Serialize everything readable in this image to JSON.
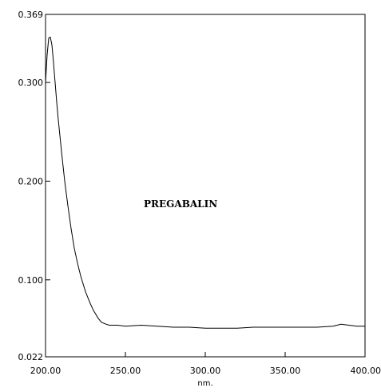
{
  "chart_data": {
    "type": "line",
    "title": "",
    "xlabel": "nm.",
    "ylabel": "",
    "xlim": [
      200.0,
      400.0
    ],
    "ylim": [
      0.022,
      0.369
    ],
    "x_ticks": [
      "200.00",
      "250.00",
      "300.00",
      "350.00",
      "400.00"
    ],
    "y_ticks": [
      "0.022",
      "0.100",
      "0.200",
      "0.300",
      "0.369"
    ],
    "grid": false,
    "annotation": "PREGABALIN",
    "series": [
      {
        "color": "#000000",
        "x": [
          200,
          201,
          202,
          203,
          204,
          205,
          206,
          207,
          208,
          210,
          212,
          214,
          216,
          218,
          220,
          222,
          225,
          228,
          230,
          233,
          235,
          238,
          240,
          245,
          250,
          260,
          270,
          280,
          290,
          300,
          310,
          320,
          330,
          340,
          350,
          360,
          370,
          380,
          385,
          390,
          395,
          400
        ],
        "y": [
          0.3,
          0.328,
          0.345,
          0.346,
          0.338,
          0.32,
          0.3,
          0.28,
          0.262,
          0.23,
          0.2,
          0.175,
          0.152,
          0.132,
          0.117,
          0.104,
          0.088,
          0.076,
          0.069,
          0.061,
          0.057,
          0.055,
          0.054,
          0.054,
          0.053,
          0.054,
          0.053,
          0.052,
          0.052,
          0.051,
          0.051,
          0.051,
          0.052,
          0.052,
          0.052,
          0.052,
          0.052,
          0.053,
          0.055,
          0.054,
          0.053,
          0.053
        ]
      }
    ]
  }
}
